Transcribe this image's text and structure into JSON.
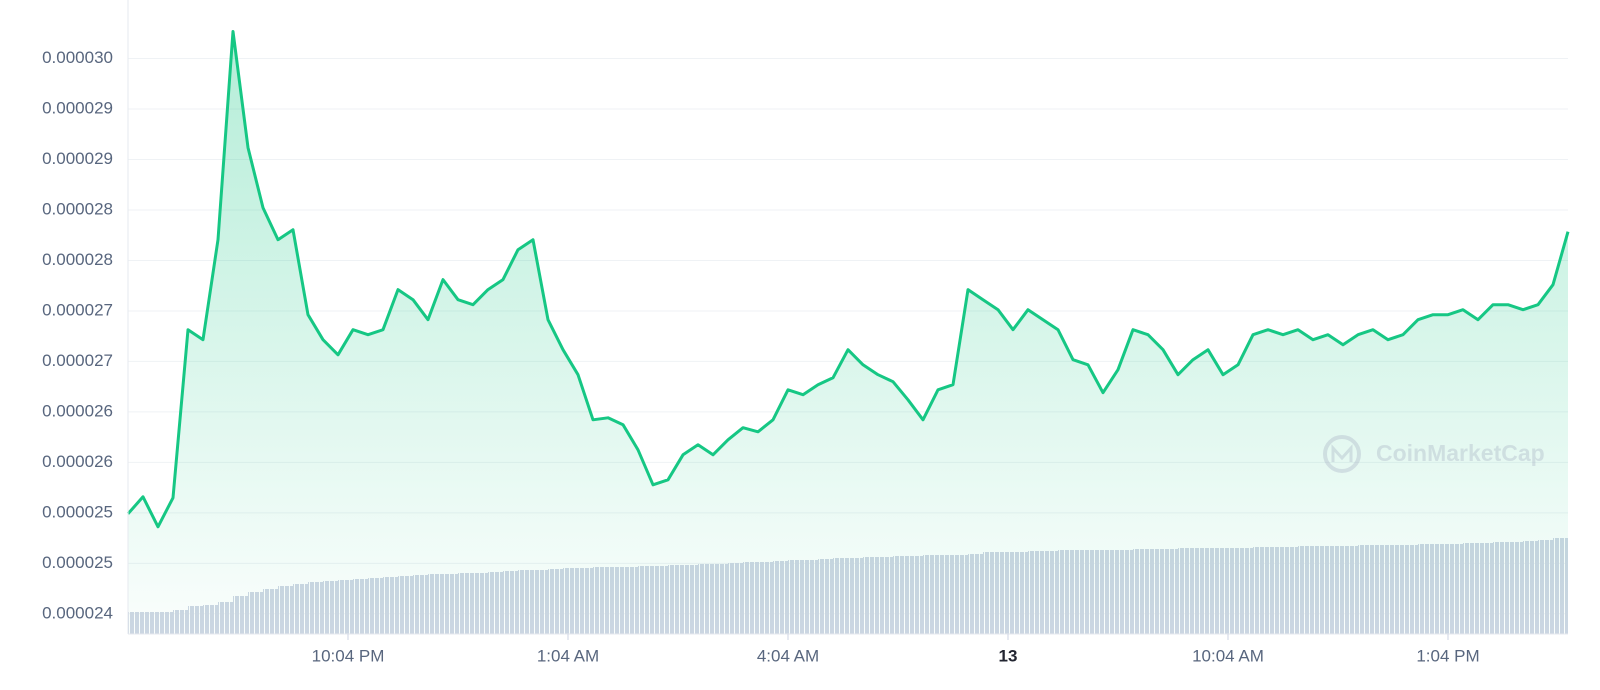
{
  "chart_data": {
    "type": "line",
    "watermark": "CoinMarketCap",
    "series": [
      {
        "name": "Price",
        "color": "#16c784",
        "values": [
          2.5391e-05,
          2.5559e-05,
          2.5262e-05,
          2.5549e-05,
          2.7214e-05,
          2.7115e-05,
          2.8106e-05,
          3.0168e-05,
          2.9018e-05,
          2.8423e-05,
          2.8106e-05,
          2.8205e-05,
          2.7363e-05,
          2.7115e-05,
          2.6966e-05,
          2.7214e-05,
          2.7165e-05,
          2.7214e-05,
          2.7611e-05,
          2.7511e-05,
          2.7313e-05,
          2.771e-05,
          2.7511e-05,
          2.7462e-05,
          2.7611e-05,
          2.771e-05,
          2.8007e-05,
          2.8106e-05,
          2.7313e-05,
          2.7016e-05,
          2.6768e-05,
          2.6322e-05,
          2.6342e-05,
          2.6273e-05,
          2.6025e-05,
          2.5678e-05,
          2.5727e-05,
          2.5975e-05,
          2.6074e-05,
          2.5975e-05,
          2.6124e-05,
          2.6243e-05,
          2.6203e-05,
          2.6322e-05,
          2.6619e-05,
          2.657e-05,
          2.6669e-05,
          2.6738e-05,
          2.7016e-05,
          2.6867e-05,
          2.6768e-05,
          2.6699e-05,
          2.652e-05,
          2.6322e-05,
          2.6619e-05,
          2.6669e-05,
          2.7611e-05,
          2.7511e-05,
          2.7412e-05,
          2.7214e-05,
          2.7412e-05,
          2.7313e-05,
          2.7214e-05,
          2.6917e-05,
          2.6867e-05,
          2.659e-05,
          2.6818e-05,
          2.7214e-05,
          2.7165e-05,
          2.7016e-05,
          2.6768e-05,
          2.6917e-05,
          2.7016e-05,
          2.6768e-05,
          2.6867e-05,
          2.7165e-05,
          2.7214e-05,
          2.7165e-05,
          2.7214e-05,
          2.7115e-05,
          2.7165e-05,
          2.7065e-05,
          2.7165e-05,
          2.7214e-05,
          2.7115e-05,
          2.7165e-05,
          2.7313e-05,
          2.7363e-05,
          2.7363e-05,
          2.7412e-05,
          2.7313e-05,
          2.7462e-05,
          2.7462e-05,
          2.7412e-05,
          2.7462e-05,
          2.766e-05,
          2.8185e-05
        ]
      },
      {
        "name": "Volume",
        "color": "#cfd6e4",
        "axis": "y2",
        "values": [
          22,
          22,
          22,
          24,
          28,
          29,
          32,
          38,
          42,
          45,
          48,
          50,
          52,
          53,
          54,
          55,
          56,
          57,
          58,
          59,
          60,
          60,
          61,
          61,
          62,
          63,
          64,
          64,
          65,
          66,
          66,
          67,
          67,
          67,
          68,
          68,
          69,
          69,
          70,
          70,
          71,
          72,
          72,
          73,
          74,
          74,
          75,
          76,
          76,
          77,
          77,
          78,
          78,
          79,
          79,
          79,
          80,
          82,
          82,
          82,
          83,
          83,
          84,
          84,
          84,
          84,
          84,
          85,
          85,
          85,
          86,
          86,
          86,
          86,
          86,
          87,
          87,
          87,
          88,
          88,
          88,
          88,
          89,
          89,
          89,
          89,
          90,
          90,
          90,
          91,
          91,
          92,
          92,
          93,
          94,
          96
        ]
      }
    ],
    "xtick_labels": [
      "10:04 PM",
      "1:04 AM",
      "4:04 AM",
      "13",
      "10:04 AM",
      "1:04 PM"
    ],
    "ylim": [
      2.42e-05,
      3.048e-05
    ],
    "yticks": [
      {
        "value": 2.99e-05,
        "label": "0.000030"
      },
      {
        "value": 2.94e-05,
        "label": "0.000029"
      },
      {
        "value": 2.89e-05,
        "label": "0.000029"
      },
      {
        "value": 2.84e-05,
        "label": "0.000028"
      },
      {
        "value": 2.79e-05,
        "label": "0.000028"
      },
      {
        "value": 2.74e-05,
        "label": "0.000027"
      },
      {
        "value": 2.69e-05,
        "label": "0.000027"
      },
      {
        "value": 2.64e-05,
        "label": "0.000026"
      },
      {
        "value": 2.59e-05,
        "label": "0.000026"
      },
      {
        "value": 2.54e-05,
        "label": "0.000025"
      },
      {
        "value": 2.49e-05,
        "label": "0.000025"
      },
      {
        "value": 2.44e-05,
        "label": "0.000024"
      }
    ],
    "y2lim": [
      0,
      634
    ],
    "grid": true
  }
}
